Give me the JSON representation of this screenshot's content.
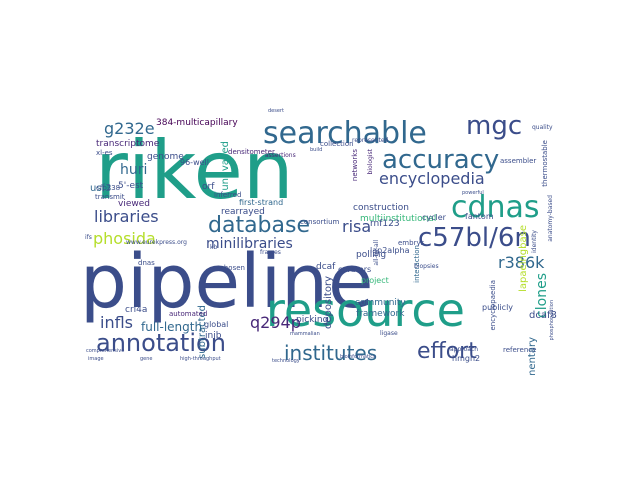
{
  "wordcloud": {
    "palette": {
      "navy": "#3b4d8a",
      "teal": "#1f9e89",
      "blue": "#31688e",
      "green": "#35b779",
      "lime": "#b5de2b",
      "purple": "#482878",
      "dark": "#440154"
    },
    "words": [
      {
        "text": "pipeline",
        "color": "navy",
        "vertical": false
      },
      {
        "text": "riken",
        "color": "teal",
        "vertical": false
      },
      {
        "text": "resource",
        "color": "teal",
        "vertical": false
      },
      {
        "text": "searchable",
        "color": "blue",
        "vertical": false
      },
      {
        "text": "accuracy",
        "color": "blue",
        "vertical": false
      },
      {
        "text": "mgc",
        "color": "navy",
        "vertical": false
      },
      {
        "text": "cdnas",
        "color": "teal",
        "vertical": false
      },
      {
        "text": "c57bl/6n",
        "color": "navy",
        "vertical": false
      },
      {
        "text": "database",
        "color": "blue",
        "vertical": false
      },
      {
        "text": "annotation",
        "color": "navy",
        "vertical": false
      },
      {
        "text": "institutes",
        "color": "blue",
        "vertical": false
      },
      {
        "text": "effort",
        "color": "navy",
        "vertical": false
      },
      {
        "text": "encyclopedia",
        "color": "navy",
        "vertical": false
      },
      {
        "text": "phosida",
        "color": "lime",
        "vertical": false
      },
      {
        "text": "libraries",
        "color": "navy",
        "vertical": false
      },
      {
        "text": "q294p",
        "color": "purple",
        "vertical": false
      },
      {
        "text": "infls",
        "color": "navy",
        "vertical": false
      },
      {
        "text": "minilibraries",
        "color": "navy",
        "vertical": false
      },
      {
        "text": "g232e",
        "color": "blue",
        "vertical": false
      },
      {
        "text": "huri",
        "color": "blue",
        "vertical": false
      },
      {
        "text": "risa",
        "color": "navy",
        "vertical": false
      },
      {
        "text": "r386k",
        "color": "blue",
        "vertical": false
      },
      {
        "text": "full-length",
        "color": "blue",
        "vertical": false
      },
      {
        "text": "depository",
        "color": "navy",
        "vertical": true
      },
      {
        "text": "complementary",
        "color": "blue",
        "vertical": true
      },
      {
        "text": "clones",
        "color": "teal",
        "vertical": true
      },
      {
        "text": "lapaeingbase",
        "color": "lime",
        "vertical": true
      },
      {
        "text": "dcaf8",
        "color": "navy",
        "vertical": false
      },
      {
        "text": "subtracted",
        "color": "blue",
        "vertical": true
      },
      {
        "text": "transcriptome",
        "color": "purple",
        "vertical": false
      },
      {
        "text": "genome",
        "color": "navy",
        "vertical": false
      },
      {
        "text": "384-multicapillary",
        "color": "dark",
        "vertical": false
      },
      {
        "text": "5'-est",
        "color": "navy",
        "vertical": false
      },
      {
        "text": "viewed",
        "color": "purple",
        "vertical": false
      },
      {
        "text": "orf",
        "color": "navy",
        "vertical": false
      },
      {
        "text": "usf3",
        "color": "blue",
        "vertical": false
      },
      {
        "text": "unrivalled",
        "color": "teal",
        "vertical": true
      },
      {
        "text": "multiinstitutional",
        "color": "green",
        "vertical": false
      },
      {
        "text": "fantom",
        "color": "navy",
        "vertical": false
      },
      {
        "text": "rearrayed",
        "color": "navy",
        "vertical": false
      },
      {
        "text": "first-strand",
        "color": "blue",
        "vertical": false
      },
      {
        "text": "construction",
        "color": "navy",
        "vertical": false
      },
      {
        "text": "rnf123",
        "color": "navy",
        "vertical": false
      },
      {
        "text": "curators",
        "color": "navy",
        "vertical": false
      },
      {
        "text": "polling",
        "color": "navy",
        "vertical": false
      },
      {
        "text": "community",
        "color": "blue",
        "vertical": false
      },
      {
        "text": "framework",
        "color": "blue",
        "vertical": false
      },
      {
        "text": "picking",
        "color": "navy",
        "vertical": false
      },
      {
        "text": "inib",
        "color": "navy",
        "vertical": false
      },
      {
        "text": "global",
        "color": "navy",
        "vertical": false
      },
      {
        "text": "crl4a",
        "color": "navy",
        "vertical": false
      },
      {
        "text": "automated",
        "color": "purple",
        "vertical": false
      },
      {
        "text": "densitometer",
        "color": "purple",
        "vertical": false
      },
      {
        "text": "assertions",
        "color": "purple",
        "vertical": false
      },
      {
        "text": "networks",
        "color": "purple",
        "vertical": true
      },
      {
        "text": "biologist",
        "color": "purple",
        "vertical": true
      },
      {
        "text": "consortium",
        "color": "navy",
        "vertical": false
      },
      {
        "text": "lap2alpha",
        "color": "navy",
        "vertical": false
      },
      {
        "text": "project",
        "color": "green",
        "vertical": false
      },
      {
        "text": "interaction",
        "color": "blue",
        "vertical": true
      },
      {
        "text": "embrys",
        "color": "navy",
        "vertical": false
      },
      {
        "text": "cycler",
        "color": "navy",
        "vertical": false
      },
      {
        "text": "dcaf",
        "color": "navy",
        "vertical": false
      },
      {
        "text": "hmgn2",
        "color": "navy",
        "vertical": false
      },
      {
        "text": "publicly",
        "color": "navy",
        "vertical": false
      },
      {
        "text": "encyclopaedia",
        "color": "navy",
        "vertical": true
      },
      {
        "text": "reference",
        "color": "navy",
        "vertical": false
      },
      {
        "text": "chosen",
        "color": "navy",
        "vertical": false
      },
      {
        "text": "collection",
        "color": "navy",
        "vertical": false
      },
      {
        "text": "inferred",
        "color": "navy",
        "vertical": false
      },
      {
        "text": "96-well",
        "color": "navy",
        "vertical": false
      },
      {
        "text": "assembler",
        "color": "navy",
        "vertical": false
      },
      {
        "text": "thermostable",
        "color": "navy",
        "vertical": true
      },
      {
        "text": "quality",
        "color": "navy",
        "vertical": false
      },
      {
        "text": "represented",
        "color": "navy",
        "vertical": false
      },
      {
        "text": "transmit",
        "color": "navy",
        "vertical": false
      },
      {
        "text": "cfp238",
        "color": "navy",
        "vertical": false
      },
      {
        "text": "xl-es",
        "color": "navy",
        "vertical": false
      },
      {
        "text": "dnas",
        "color": "navy",
        "vertical": false
      },
      {
        "text": "www.eurekpress.org",
        "color": "navy",
        "vertical": false
      },
      {
        "text": "identity",
        "color": "navy",
        "vertical": true
      },
      {
        "text": "all-by-all",
        "color": "navy",
        "vertical": true
      },
      {
        "text": "anatomy-based",
        "color": "navy",
        "vertical": true
      },
      {
        "text": "frames",
        "color": "navy",
        "vertical": false
      },
      {
        "text": "biopsies",
        "color": "navy",
        "vertical": false
      },
      {
        "text": "approach",
        "color": "navy",
        "vertical": false
      },
      {
        "text": "comprehensive",
        "color": "navy",
        "vertical": false
      },
      {
        "text": "image",
        "color": "navy",
        "vertical": false
      },
      {
        "text": "gene",
        "color": "navy",
        "vertical": false
      },
      {
        "text": "high-throughput",
        "color": "navy",
        "vertical": false
      },
      {
        "text": "technology",
        "color": "navy",
        "vertical": false
      },
      {
        "text": "bioinformatics",
        "color": "navy",
        "vertical": false
      },
      {
        "text": "mammalian",
        "color": "navy",
        "vertical": false
      },
      {
        "text": "build",
        "color": "navy",
        "vertical": false
      },
      {
        "text": "ligase",
        "color": "navy",
        "vertical": false
      },
      {
        "text": "powerful",
        "color": "navy",
        "vertical": false
      },
      {
        "text": "phosphorylation",
        "color": "navy",
        "vertical": true
      },
      {
        "text": "desert",
        "color": "navy",
        "vertical": false
      },
      {
        "text": "ifs",
        "color": "navy",
        "vertical": false
      },
      {
        "text": "kb",
        "color": "navy",
        "vertical": false
      }
    ]
  }
}
